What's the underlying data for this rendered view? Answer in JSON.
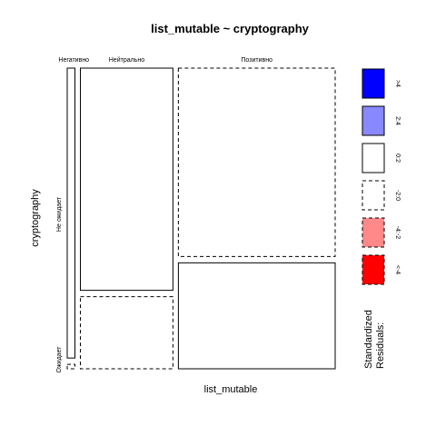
{
  "chart_data": {
    "type": "mosaic",
    "title": "list_mutable ~ cryptography",
    "xlabel": "list_mutable",
    "ylabel": "cryptography",
    "x_categories": [
      "Негативно",
      "Нейтрально",
      "Позитивно"
    ],
    "y_categories": [
      "Не ожидает",
      "Ожидает"
    ],
    "x_proportions": [
      0.03,
      0.36,
      0.61
    ],
    "y_proportions": [
      [
        0.985,
        0.015
      ],
      [
        0.755,
        0.245
      ],
      [
        0.64,
        0.36
      ]
    ],
    "cell_styles": [
      [
        "solid",
        "dashed"
      ],
      [
        "solid",
        "dashed"
      ],
      [
        "dashed",
        "solid"
      ]
    ],
    "legend": {
      "title_line1": "Standardized",
      "title_line2": "Residuals:",
      "items": [
        {
          "label": ">4",
          "color": "#0000ff",
          "style": "solid"
        },
        {
          "label": "2:4",
          "color": "#8888ff",
          "style": "solid"
        },
        {
          "label": "0:2",
          "color": "#ffffff",
          "style": "solid"
        },
        {
          "label": "-2:0",
          "color": "#ffffff",
          "style": "dashed"
        },
        {
          "label": "-4:-2",
          "color": "#ff8888",
          "style": "dashed"
        },
        {
          "label": "<-4",
          "color": "#ff0000",
          "style": "dashed"
        }
      ]
    }
  }
}
